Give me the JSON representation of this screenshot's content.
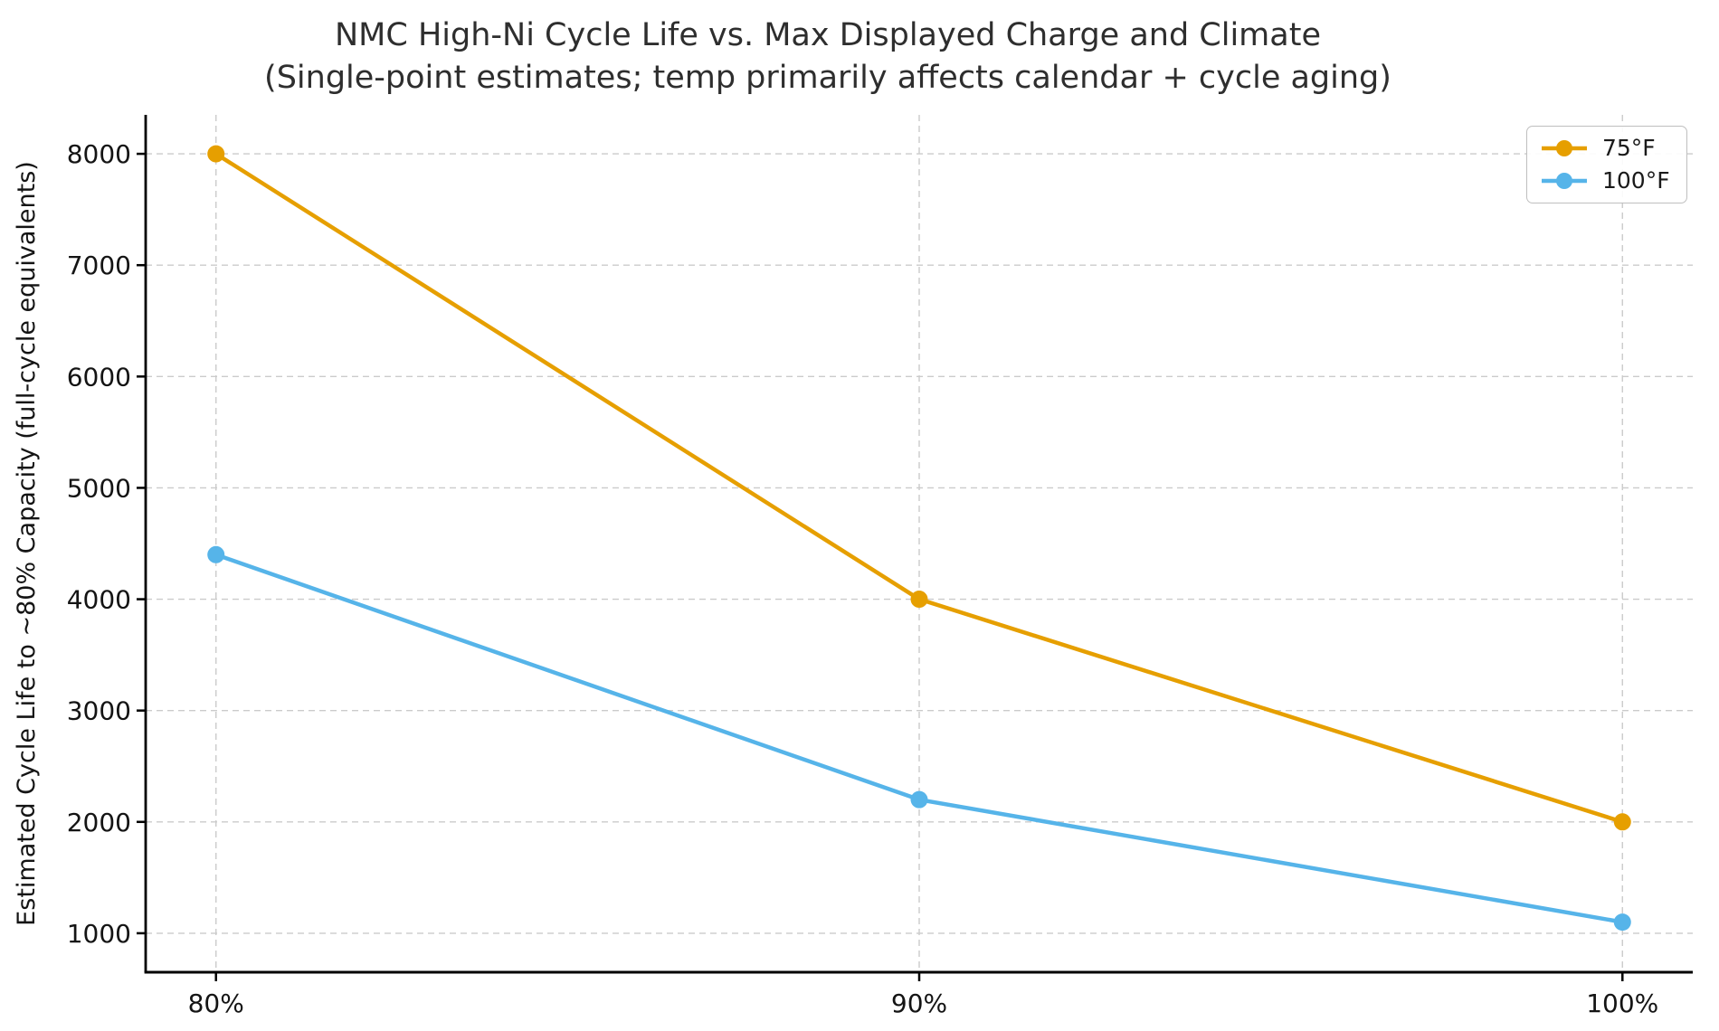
{
  "chart_data": {
    "type": "line",
    "title": "NMC High-Ni Cycle Life vs. Max Displayed Charge and Climate",
    "subtitle": "(Single-point estimates; temp primarily affects calendar + cycle aging)",
    "categories": [
      "80%",
      "90%",
      "100%"
    ],
    "series": [
      {
        "name": "75°F",
        "color": "#E69F00",
        "values": [
          8000,
          4000,
          2000
        ]
      },
      {
        "name": "100°F",
        "color": "#56B4E9",
        "values": [
          4400,
          2200,
          1100
        ]
      }
    ],
    "xlabel": "",
    "ylabel": "Estimated Cycle Life to ~80% Capacity (full-cycle equivalents)",
    "yticks": [
      1000,
      2000,
      3000,
      4000,
      5000,
      6000,
      7000,
      8000
    ],
    "ylim": [
      650,
      8350
    ],
    "grid": true,
    "grid_style": "dashed",
    "legend_position": "upper right",
    "marker": "circle"
  }
}
